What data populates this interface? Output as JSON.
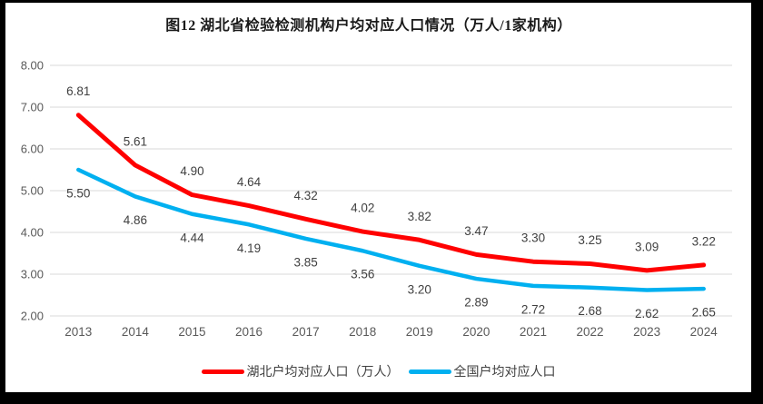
{
  "chart_data": {
    "type": "line",
    "title": "图12 湖北省检验检测机构户均对应人口情况（万人/1家机构）",
    "categories": [
      "2013",
      "2014",
      "2015",
      "2016",
      "2017",
      "2018",
      "2019",
      "2020",
      "2021",
      "2022",
      "2023",
      "2024"
    ],
    "series": [
      {
        "name": "湖北户均对应人口（万人）",
        "color": "#FF0000",
        "label_position": "above",
        "values": [
          6.81,
          5.61,
          4.9,
          4.64,
          4.32,
          4.02,
          3.82,
          3.47,
          3.3,
          3.25,
          3.09,
          3.22
        ]
      },
      {
        "name": "全国户均对应人口",
        "color": "#00B0F0",
        "label_position": "below",
        "values": [
          5.5,
          4.86,
          4.44,
          4.19,
          3.85,
          3.56,
          3.2,
          2.89,
          2.72,
          2.68,
          2.62,
          2.65
        ]
      }
    ],
    "ylim": [
      2.0,
      8.0
    ],
    "y_ticks": [
      "8.00",
      "7.00",
      "6.00",
      "5.00",
      "4.00",
      "3.00",
      "2.00"
    ],
    "grid": true,
    "legend_position": "bottom",
    "colors": {
      "gridline": "#D9D9D9",
      "axis_text": "#595959",
      "data_label_text": "#404040",
      "frame_border": "#000000",
      "background": "#FFFFFF"
    }
  }
}
